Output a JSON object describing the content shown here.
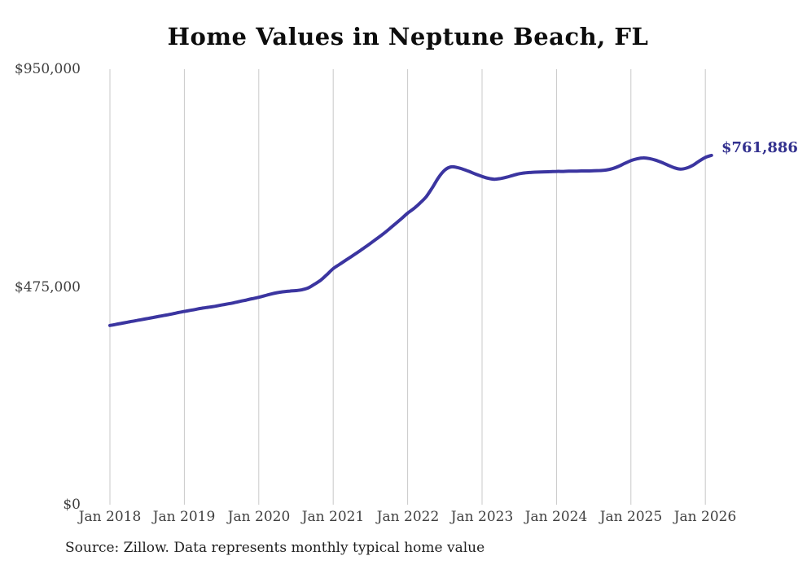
{
  "chart_data": {
    "type": "line",
    "title": "Home Values in Neptune Beach, FL",
    "xlabel": "",
    "ylabel": "",
    "x_start": "2018-01",
    "x_frequency": "monthly",
    "xtick_labels": [
      "Jan 2018",
      "Jan 2019",
      "Jan 2020",
      "Jan 2021",
      "Jan 2022",
      "Jan 2023",
      "Jan 2024",
      "Jan 2025",
      "Jan 2026"
    ],
    "ytick_labels": [
      "$0",
      "$475,000",
      "$950,000"
    ],
    "ytick_values": [
      0,
      475000,
      950000
    ],
    "ylim": [
      0,
      950000
    ],
    "grid": "vertical-only",
    "legend": "none",
    "latest_point_label": "$761,886",
    "latest_value": 761886,
    "series": [
      {
        "name": "Monthly typical home value",
        "values": [
          391000,
          393500,
          396000,
          398500,
          401000,
          403500,
          406000,
          408500,
          411000,
          413500,
          416000,
          419000,
          421500,
          424000,
          426500,
          429000,
          431000,
          433000,
          435500,
          438000,
          440500,
          443500,
          446500,
          449500,
          452500,
          456000,
          459500,
          462500,
          464500,
          466000,
          467000,
          469000,
          473000,
          481000,
          490000,
          502000,
          515000,
          524000,
          533000,
          542000,
          551000,
          560500,
          570000,
          580000,
          590000,
          601000,
          612500,
          624000,
          636000,
          646000,
          658000,
          672000,
          692000,
          714000,
          730000,
          737000,
          735500,
          731500,
          726500,
          721000,
          716000,
          712000,
          710000,
          711500,
          714500,
          718500,
          722000,
          724000,
          725000,
          725500,
          726000,
          726500,
          727000,
          727000,
          727500,
          727500,
          728000,
          728000,
          728500,
          729000,
          730000,
          733000,
          738000,
          744500,
          750500,
          754500,
          756500,
          755000,
          751500,
          746500,
          740500,
          735000,
          732000,
          734500,
          740500,
          749500,
          757500,
          761886
        ]
      }
    ]
  },
  "footer": {
    "source_note": "Source: Zillow. Data represents monthly typical home value"
  },
  "colors": {
    "line": "#3b35a0",
    "value_label": "#32308e",
    "grid": "#c9c9c9",
    "title": "#0d0d0d",
    "tick": "#3f3f3f"
  }
}
